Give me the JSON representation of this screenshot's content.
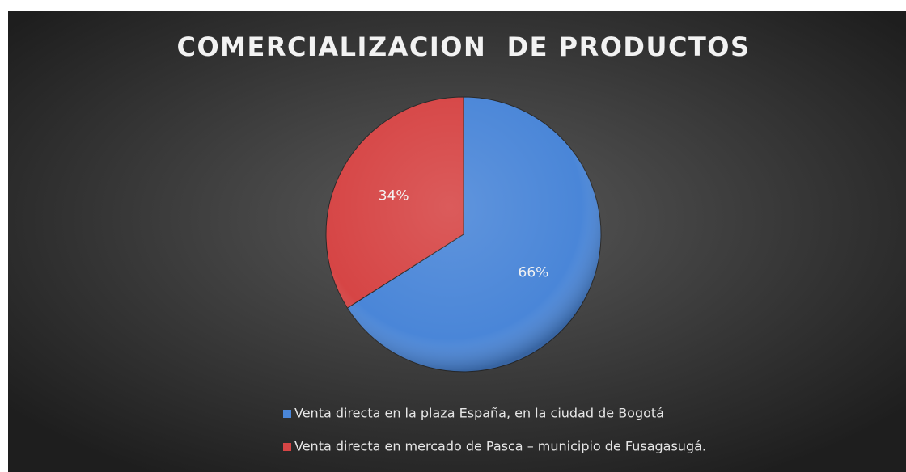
{
  "chart_data": {
    "type": "pie",
    "title": "COMERCIALIZACION  DE PRODUCTOS",
    "categories": [
      "Venta directa en la plaza España, en la ciudad de Bogotá",
      "Venta directa en mercado de Pasca – municipio de Fusagasugá."
    ],
    "values": [
      66,
      34
    ],
    "value_labels": [
      "66%",
      "34%"
    ],
    "colors": [
      "#4a86d8",
      "#d64545"
    ],
    "legend": "bottom"
  }
}
